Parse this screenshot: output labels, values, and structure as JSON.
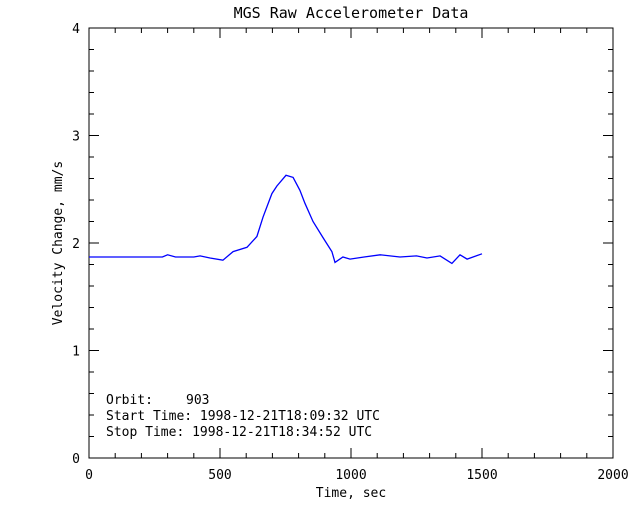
{
  "chart_data": {
    "type": "line",
    "title": "MGS Raw Accelerometer Data",
    "xlabel": "Time, sec",
    "ylabel": "Velocity Change, mm/s",
    "xlim": [
      0,
      2000
    ],
    "ylim": [
      0,
      4
    ],
    "x_ticks": [
      "0",
      "500",
      "1000",
      "1500",
      "2000"
    ],
    "y_ticks": [
      "0",
      "1",
      "2",
      "3",
      "4"
    ],
    "grid": false,
    "series": [
      {
        "color": "#0000ff",
        "x": [
          0,
          100,
          200,
          280,
          300,
          330,
          400,
          424,
          462,
          511,
          550,
          603,
          641,
          664,
          698,
          717,
          752,
          779,
          805,
          824,
          855,
          893,
          927,
          939,
          969,
          996,
          1050,
          1111,
          1187,
          1250,
          1290,
          1340,
          1385,
          1416,
          1443,
          1500
        ],
        "y": [
          1.87,
          1.87,
          1.87,
          1.87,
          1.89,
          1.87,
          1.87,
          1.88,
          1.86,
          1.84,
          1.92,
          1.96,
          2.06,
          2.24,
          2.46,
          2.53,
          2.63,
          2.61,
          2.49,
          2.37,
          2.2,
          2.05,
          1.92,
          1.82,
          1.87,
          1.85,
          1.87,
          1.89,
          1.87,
          1.88,
          1.86,
          1.88,
          1.81,
          1.89,
          1.85,
          1.9
        ]
      }
    ],
    "annotations": {
      "orbit_label": "Orbit:",
      "orbit_value": "903",
      "start_time": "Start Time: 1998-12-21T18:09:32 UTC",
      "stop_time": "Stop Time: 1998-12-21T18:34:52 UTC"
    }
  }
}
